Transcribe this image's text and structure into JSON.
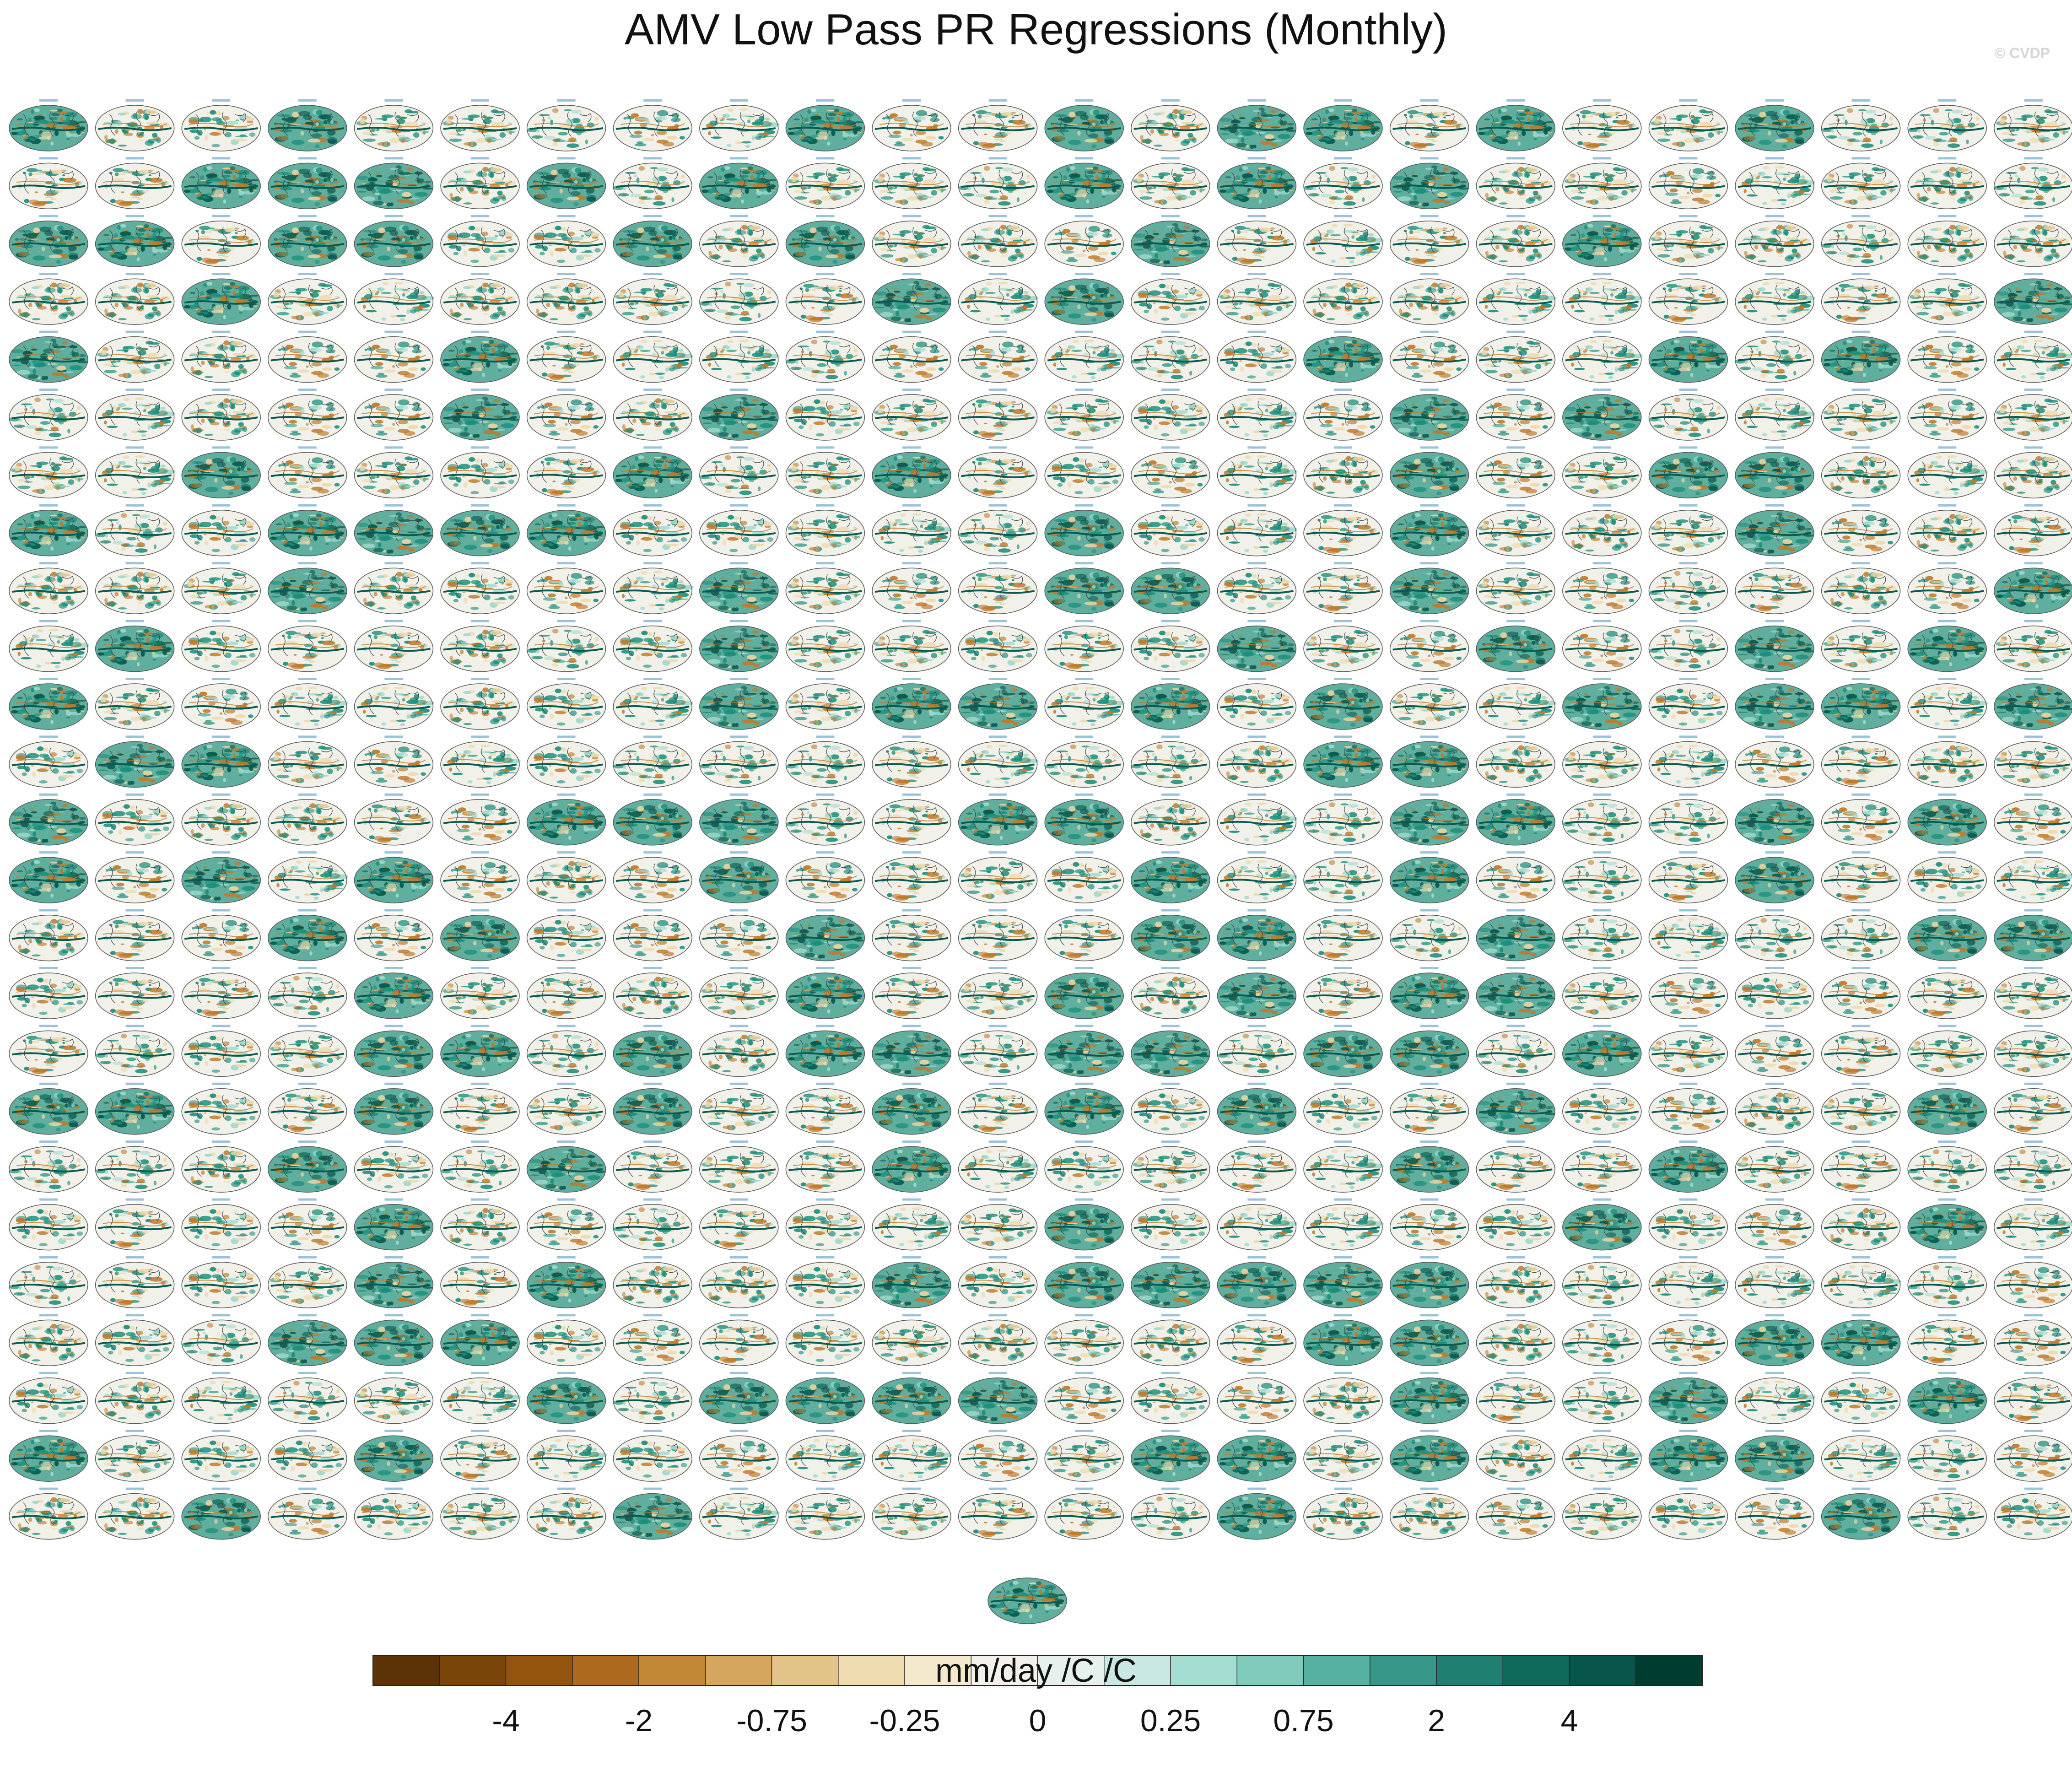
{
  "title": "AMV Low Pass PR Regressions (Monthly)",
  "watermark": "© CVDP",
  "chart_data": {
    "type": "heatmap",
    "title": "AMV Low Pass PR Regressions (Monthly)",
    "grid": {
      "rows": 25,
      "cols": 24,
      "extra_panels": 1
    },
    "map_projection": "global ellipse",
    "colorbar": {
      "units": "mm/day /C /C",
      "tick_labels": [
        "-4",
        "-2",
        "-0.75",
        "-0.25",
        "0",
        "0.25",
        "0.75",
        "2",
        "4"
      ],
      "colors": [
        "#5c3306",
        "#7a4508",
        "#93550d",
        "#ad6a1e",
        "#c38836",
        "#d4a65e",
        "#e3c488",
        "#efdcb0",
        "#f4e9cd",
        "#f4f1ea",
        "#e6f1ee",
        "#c9e8e2",
        "#a6ddd3",
        "#80cbbc",
        "#57b1a2",
        "#369788",
        "#1f7f71",
        "#0f6a5c",
        "#06544a",
        "#003c30"
      ]
    }
  },
  "colors": {
    "ocean_bg": "#f1f1ea",
    "green": "#1d8f7c",
    "dark_green": "#0a5a4f",
    "teal_light": "#9fd9cc",
    "brown": "#c07a2a",
    "tan": "#eed7a6",
    "coast": "#444444"
  }
}
